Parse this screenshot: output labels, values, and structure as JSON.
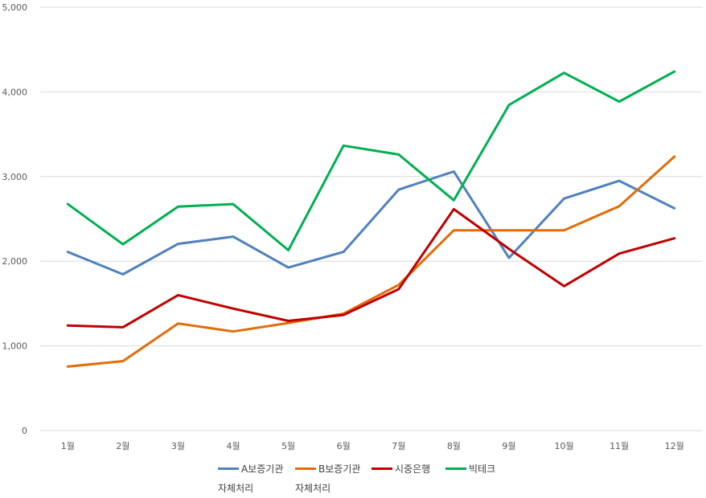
{
  "chart_data": {
    "type": "line",
    "categories": [
      "1월",
      "2월",
      "3월",
      "4월",
      "5월",
      "6월",
      "7월",
      "8월",
      "9월",
      "10월",
      "11월",
      "12월"
    ],
    "ylim": [
      0,
      5000
    ],
    "yticks": [
      0,
      1000,
      2000,
      3000,
      4000,
      5000
    ],
    "ytick_labels": [
      "0",
      "1,000",
      "2,000",
      "3,000",
      "4,000",
      "5,000"
    ],
    "grid": true,
    "legend_position": "bottom",
    "series": [
      {
        "name": "A보증기관\n자체처리",
        "color": "#4F81BD",
        "values": [
          2110,
          1845,
          2205,
          2290,
          1925,
          2110,
          2845,
          3060,
          2040,
          2740,
          2950,
          2625
        ]
      },
      {
        "name": "B보증기관\n자체처리",
        "color": "#E36C09",
        "values": [
          755,
          820,
          1265,
          1170,
          1270,
          1380,
          1720,
          2365,
          2365,
          2365,
          2650,
          3235
        ]
      },
      {
        "name": "시중은행",
        "color": "#C00000",
        "values": [
          1240,
          1220,
          1600,
          1440,
          1295,
          1365,
          1670,
          2615,
          2145,
          1705,
          2090,
          2270
        ]
      },
      {
        "name": "빅테크",
        "color": "#00B050",
        "values": [
          2675,
          2200,
          2645,
          2675,
          2130,
          3365,
          3260,
          2720,
          3845,
          4225,
          3885,
          4240
        ]
      }
    ]
  }
}
